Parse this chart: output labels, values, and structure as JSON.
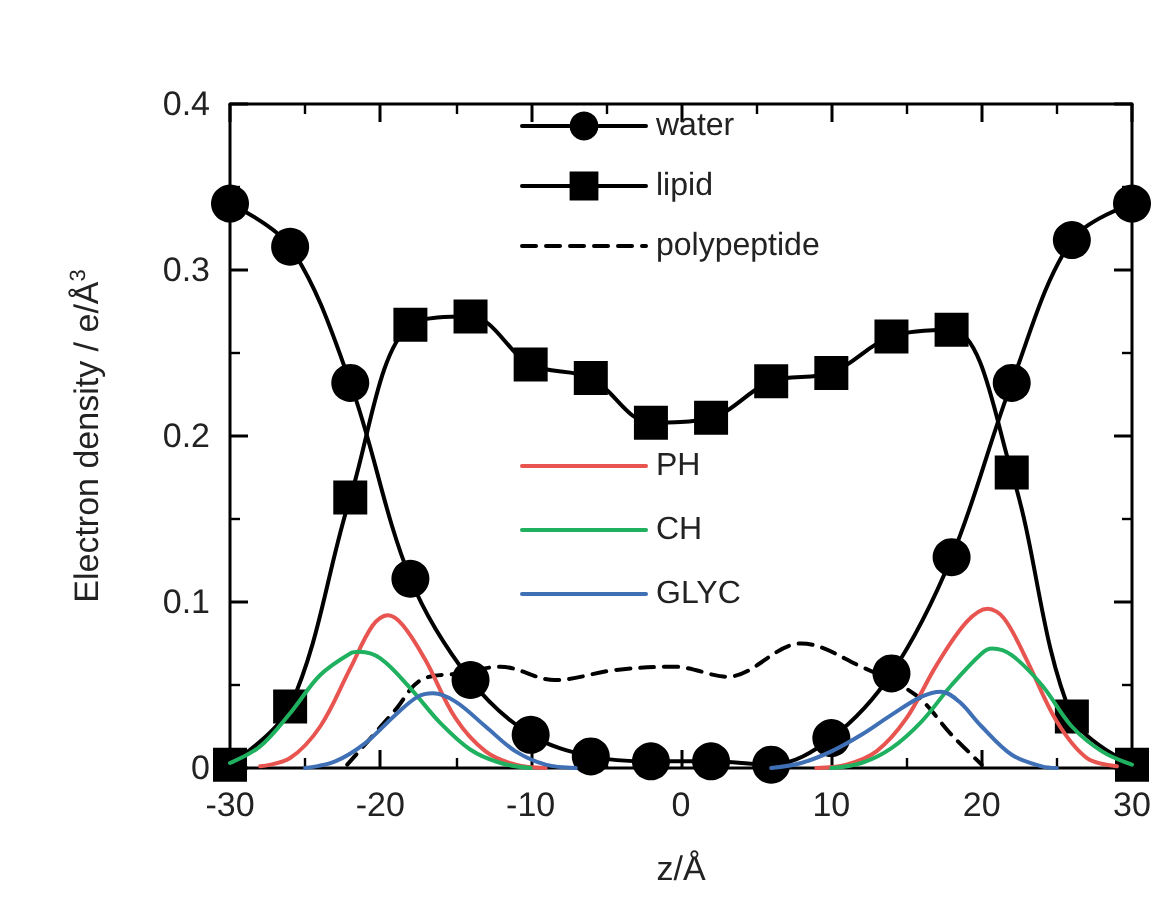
{
  "chart_data": {
    "type": "line",
    "xlabel": "z/Å",
    "ylabel": "Electron density / e/Å$^{3}$",
    "xlim": [
      -30,
      30
    ],
    "xticks": [
      -30,
      -20,
      -10,
      0,
      10,
      20,
      30
    ],
    "ylim": [
      0,
      0.4
    ],
    "yticks": [
      0,
      0.1,
      0.2,
      0.3,
      0.4
    ],
    "legend": "top",
    "series": [
      {
        "name": "water",
        "color": "#000000",
        "marker": "circle",
        "line_style": "solid",
        "x": [
          -30,
          -26,
          -22,
          -18,
          -14,
          -10,
          -6,
          -2,
          2,
          6,
          10,
          14,
          18,
          22,
          26,
          30
        ],
        "values": [
          0.34,
          0.314,
          0.232,
          0.114,
          0.053,
          0.02,
          0.007,
          0.004,
          0.004,
          0.002,
          0.018,
          0.057,
          0.127,
          0.232,
          0.318,
          0.34
        ]
      },
      {
        "name": "lipid",
        "color": "#000000",
        "marker": "square",
        "line_style": "solid",
        "x": [
          -30,
          -26,
          -22,
          -18,
          -14,
          -10,
          -6,
          -2,
          2,
          6,
          10,
          14,
          18,
          22,
          26,
          30
        ],
        "values": [
          0.002,
          0.037,
          0.163,
          0.267,
          0.272,
          0.243,
          0.235,
          0.208,
          0.211,
          0.233,
          0.238,
          0.26,
          0.264,
          0.178,
          0.031,
          0.002
        ]
      },
      {
        "name": "polypeptide",
        "color": "#000000",
        "marker": "none",
        "line_style": "dashed",
        "x": [
          -22.2,
          -19,
          -17.3,
          -14.7,
          -12,
          -8.4,
          -4.4,
          -0.4,
          3.1,
          8,
          12,
          15.6,
          18,
          20
        ],
        "values": [
          0.002,
          0.035,
          0.053,
          0.057,
          0.061,
          0.053,
          0.059,
          0.061,
          0.055,
          0.075,
          0.061,
          0.044,
          0.02,
          0.002
        ]
      },
      {
        "name": "PH",
        "color": "#e8544f",
        "marker": "none",
        "line_style": "solid",
        "x": [
          -28,
          -26,
          -24,
          -22,
          -20.5,
          -19.5,
          -18.5,
          -17,
          -15,
          -13,
          -11,
          -9,
          0,
          9,
          11,
          13,
          15,
          17,
          19,
          20.4,
          21.5,
          23,
          25,
          27,
          29
        ],
        "values": [
          0.001,
          0.006,
          0.025,
          0.06,
          0.086,
          0.092,
          0.086,
          0.065,
          0.03,
          0.01,
          0.002,
          0,
          null,
          0,
          0.002,
          0.01,
          0.03,
          0.062,
          0.088,
          0.096,
          0.09,
          0.065,
          0.028,
          0.006,
          0.001
        ]
      },
      {
        "name": "CH",
        "color": "#1fb060",
        "marker": "none",
        "line_style": "solid",
        "x": [
          -30,
          -28,
          -26,
          -24,
          -22,
          -21.4,
          -20,
          -18,
          -16,
          -14,
          -12,
          -10,
          0,
          10,
          12,
          14,
          16,
          18,
          20,
          20.7,
          22,
          24,
          26,
          28,
          30
        ],
        "values": [
          0.003,
          0.013,
          0.033,
          0.056,
          0.069,
          0.07,
          0.066,
          0.048,
          0.027,
          0.011,
          0.003,
          0,
          null,
          0,
          0.003,
          0.012,
          0.028,
          0.05,
          0.069,
          0.072,
          0.068,
          0.05,
          0.025,
          0.01,
          0.002
        ]
      },
      {
        "name": "GLYC",
        "color": "#3f6fb5",
        "marker": "none",
        "line_style": "solid",
        "x": [
          -25,
          -23,
          -21,
          -19,
          -17.5,
          -16.5,
          -15,
          -13,
          -11,
          -9,
          -7,
          0,
          6,
          8,
          10,
          12,
          14,
          16,
          17.3,
          18.5,
          20,
          22,
          24,
          25
        ],
        "values": [
          0,
          0.004,
          0.015,
          0.032,
          0.043,
          0.045,
          0.04,
          0.025,
          0.01,
          0.002,
          0,
          null,
          0,
          0.003,
          0.01,
          0.02,
          0.032,
          0.043,
          0.046,
          0.04,
          0.025,
          0.008,
          0.001,
          0
        ]
      }
    ]
  }
}
